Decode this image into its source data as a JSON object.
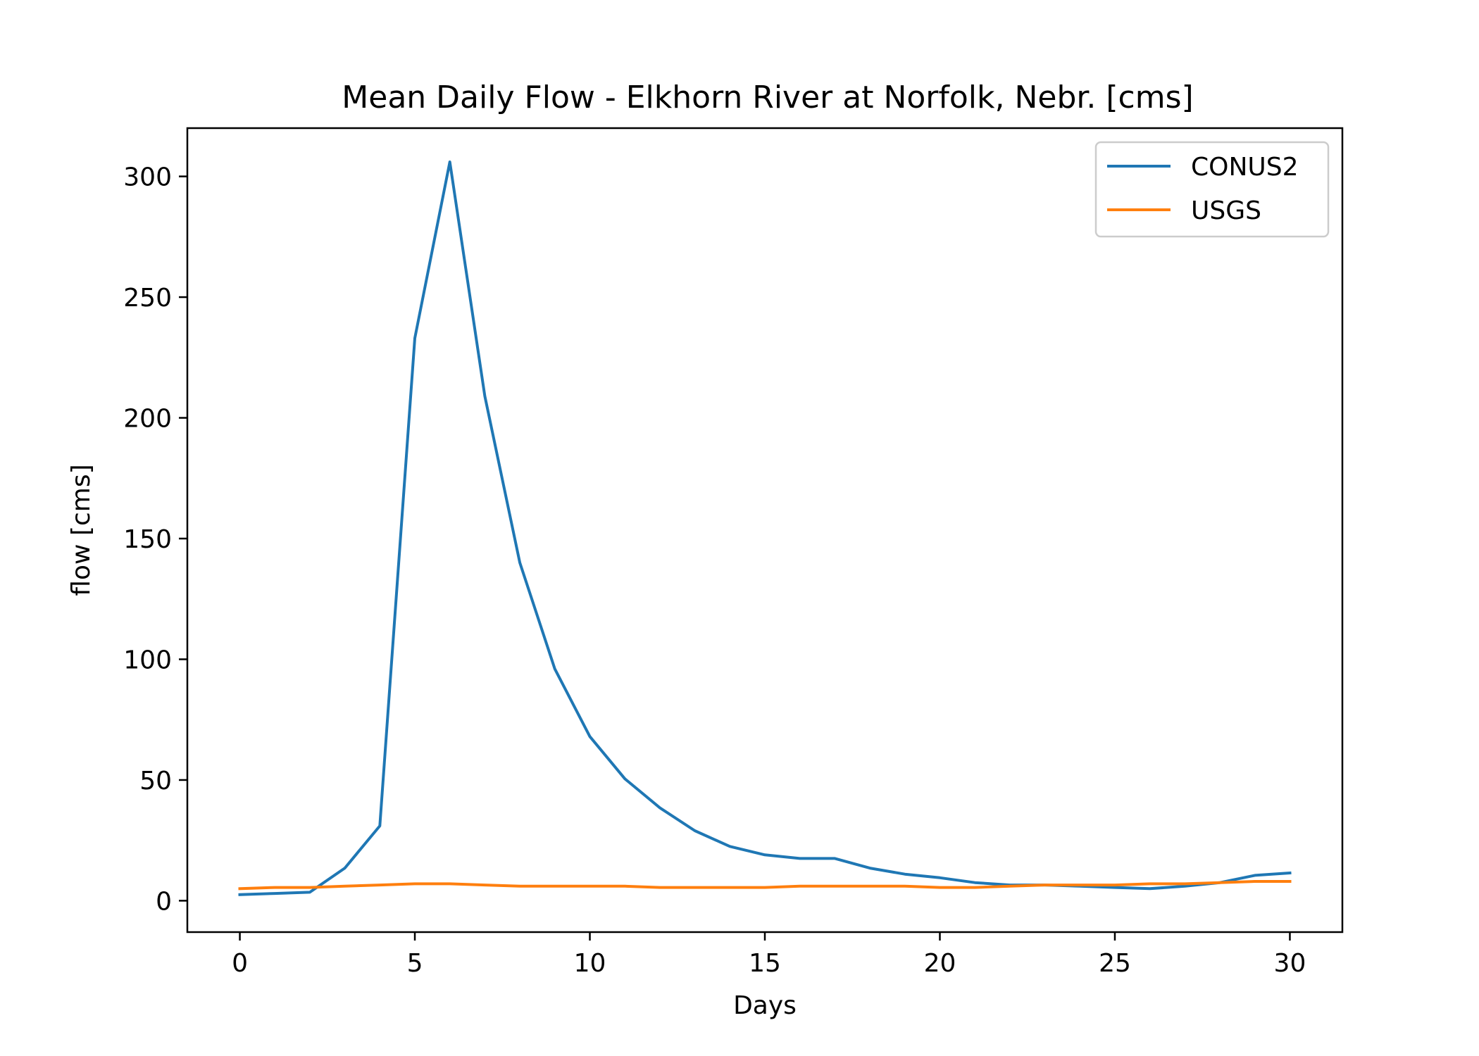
{
  "chart_data": {
    "type": "line",
    "title": "Mean Daily Flow - Elkhorn River at Norfolk, Nebr. [cms]",
    "xlabel": "Days",
    "ylabel": "flow [cms]",
    "xlim": [
      -1.5,
      31.5
    ],
    "ylim": [
      -13,
      320
    ],
    "xticks": [
      0,
      5,
      10,
      15,
      20,
      25,
      30
    ],
    "yticks": [
      0,
      50,
      100,
      150,
      200,
      250,
      300
    ],
    "grid": false,
    "legend_position": "top-right",
    "x": [
      0,
      1,
      2,
      3,
      4,
      5,
      6,
      7,
      8,
      9,
      10,
      11,
      12,
      13,
      14,
      15,
      16,
      17,
      18,
      19,
      20,
      21,
      22,
      23,
      24,
      25,
      26,
      27,
      28,
      29,
      30
    ],
    "series": [
      {
        "name": "CONUS2",
        "color": "#1f77b4",
        "values": [
          2.5,
          3,
          3.5,
          13.5,
          31,
          233,
          306,
          209,
          140,
          96,
          68,
          50.5,
          38.5,
          29,
          22.5,
          19,
          17.5,
          17.5,
          13.5,
          11,
          9.5,
          7.5,
          6.5,
          6.5,
          6,
          5.5,
          5,
          6,
          7.5,
          10.5,
          11.5
        ]
      },
      {
        "name": "USGS",
        "color": "#ff7f0e",
        "values": [
          5,
          5.5,
          5.5,
          6,
          6.5,
          7,
          7,
          6.5,
          6,
          6,
          6,
          6,
          5.5,
          5.5,
          5.5,
          5.5,
          6,
          6,
          6,
          6,
          5.5,
          5.5,
          6,
          6.5,
          6.5,
          6.5,
          7,
          7,
          7.5,
          8,
          8
        ]
      }
    ]
  }
}
